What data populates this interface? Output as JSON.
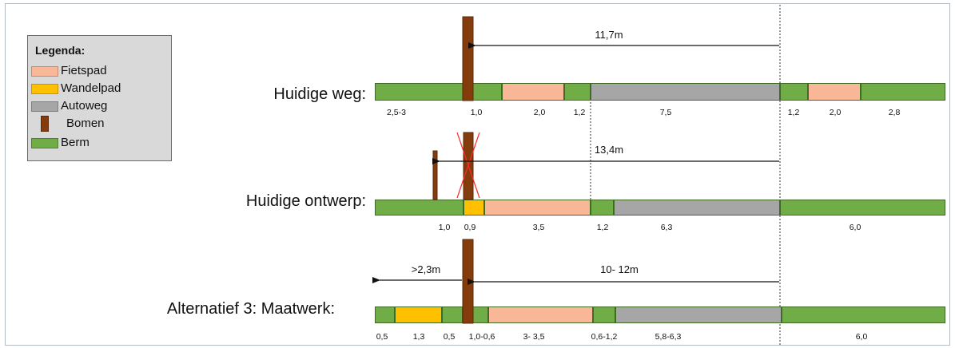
{
  "legend": {
    "title": "Legenda:",
    "items": [
      {
        "label": "Fietspad",
        "color": "#f8b898",
        "border": "#c98a6a",
        "kind": "box"
      },
      {
        "label": "Wandelpad",
        "color": "#ffc000",
        "border": "#c79600",
        "kind": "box"
      },
      {
        "label": "Autoweg",
        "color": "#a6a6a6",
        "border": "#7f7f7f",
        "kind": "box"
      },
      {
        "label": "Bomen",
        "color": "#843c0c",
        "border": "#5a2808",
        "kind": "tree"
      },
      {
        "label": "Berm",
        "color": "#70ad47",
        "border": "#4e7f30",
        "kind": "box"
      }
    ]
  },
  "colors": {
    "berm": "#70ad47",
    "fietspad": "#f8b898",
    "wandelpad": "#ffc000",
    "autoweg": "#a6a6a6",
    "boom": "#843c0c",
    "outline": "#3f6b27",
    "arrow": "#111111",
    "cross": "#ff2a2a"
  },
  "rows": [
    {
      "label": "Huidige weg:",
      "arrows": [
        {
          "label": "11,7m"
        }
      ],
      "segments": [
        {
          "type": "berm",
          "value": "2,5-3"
        },
        {
          "type": "berm",
          "value": "1,0"
        },
        {
          "type": "fietspad",
          "value": "2,0"
        },
        {
          "type": "berm",
          "value": "1,2"
        },
        {
          "type": "autoweg",
          "value": "7,5"
        },
        {
          "type": "berm",
          "value": "1,2"
        },
        {
          "type": "fietspad",
          "value": "2,0"
        },
        {
          "type": "berm",
          "value": "2,8"
        }
      ]
    },
    {
      "label": "Huidige ontwerp:",
      "arrows": [
        {
          "label": "13,4m"
        }
      ],
      "segments": [
        {
          "type": "berm",
          "value": "1,0"
        },
        {
          "type": "wandelpad",
          "value": "0,9"
        },
        {
          "type": "fietspad",
          "value": "3,5"
        },
        {
          "type": "berm",
          "value": "1,2"
        },
        {
          "type": "autoweg",
          "value": "6,3"
        },
        {
          "type": "berm",
          "value": "6,0"
        }
      ]
    },
    {
      "label": "Alternatief 3: Maatwerk:",
      "arrows": [
        {
          "label": "10- 12m"
        },
        {
          "label": ">2,3m"
        }
      ],
      "segments": [
        {
          "type": "berm",
          "value": "0,5"
        },
        {
          "type": "wandelpad",
          "value": "1,3"
        },
        {
          "type": "berm",
          "value": "0,5"
        },
        {
          "type": "berm",
          "value": "1,0-0,6"
        },
        {
          "type": "fietspad",
          "value": "3- 3,5"
        },
        {
          "type": "berm",
          "value": "0,6-1,2"
        },
        {
          "type": "autoweg",
          "value": "5,8-6,3"
        },
        {
          "type": "berm",
          "value": "6,0"
        }
      ]
    }
  ]
}
